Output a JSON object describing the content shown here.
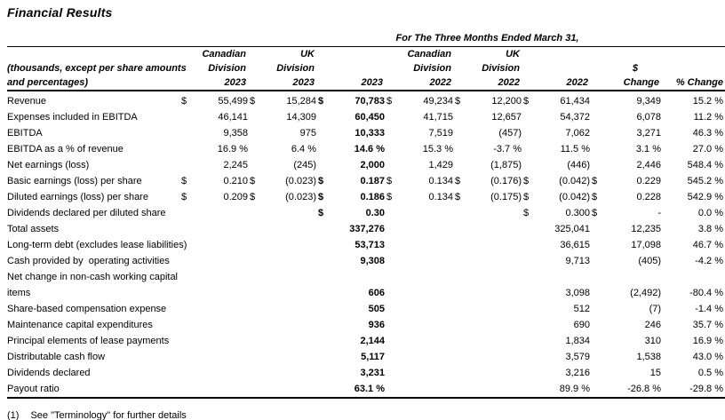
{
  "title": "Financial Results",
  "table": {
    "span_header": "For The Three Months Ended March 31,",
    "row_label_header": "(thousands, except per share amounts\nand percentages)",
    "columns": [
      {
        "lines": [
          "Canadian",
          "Division",
          "2023"
        ]
      },
      {
        "lines": [
          "UK",
          "Division",
          "2023"
        ]
      },
      {
        "lines": [
          "",
          "",
          "2023"
        ]
      },
      {
        "lines": [
          "Canadian",
          "Division",
          "2022"
        ]
      },
      {
        "lines": [
          "UK",
          "Division",
          "2022"
        ]
      },
      {
        "lines": [
          "",
          "",
          "2022"
        ]
      },
      {
        "lines": [
          "",
          "$",
          "Change"
        ]
      },
      {
        "lines": [
          "",
          "",
          "% Change"
        ]
      }
    ],
    "rows": [
      {
        "label": "Revenue",
        "cells": [
          {
            "d": "$",
            "v": "55,499"
          },
          {
            "d": "$",
            "v": "15,284"
          },
          {
            "d": "$",
            "v": "70,783"
          },
          {
            "d": "$",
            "v": "49,234"
          },
          {
            "d": "$",
            "v": "12,200"
          },
          {
            "d": "$",
            "v": "61,434"
          },
          {
            "d": "",
            "v": "9,349"
          },
          {
            "d": "",
            "v": "15.2 %"
          }
        ]
      },
      {
        "label": "Expenses included in EBITDA",
        "cells": [
          {
            "d": "",
            "v": "46,141"
          },
          {
            "d": "",
            "v": "14,309"
          },
          {
            "d": "",
            "v": "60,450"
          },
          {
            "d": "",
            "v": "41,715"
          },
          {
            "d": "",
            "v": "12,657"
          },
          {
            "d": "",
            "v": "54,372"
          },
          {
            "d": "",
            "v": "6,078"
          },
          {
            "d": "",
            "v": "11.2 %"
          }
        ]
      },
      {
        "label": "EBITDA",
        "cells": [
          {
            "d": "",
            "v": "9,358"
          },
          {
            "d": "",
            "v": "975"
          },
          {
            "d": "",
            "v": "10,333"
          },
          {
            "d": "",
            "v": "7,519"
          },
          {
            "d": "",
            "v": "(457)"
          },
          {
            "d": "",
            "v": "7,062"
          },
          {
            "d": "",
            "v": "3,271"
          },
          {
            "d": "",
            "v": "46.3 %"
          }
        ]
      },
      {
        "label": "EBITDA as a % of revenue",
        "cells": [
          {
            "d": "",
            "v": "16.9 %"
          },
          {
            "d": "",
            "v": "6.4 %"
          },
          {
            "d": "",
            "v": "14.6 %"
          },
          {
            "d": "",
            "v": "15.3 %"
          },
          {
            "d": "",
            "v": "-3.7 %"
          },
          {
            "d": "",
            "v": "11.5 %"
          },
          {
            "d": "",
            "v": "3.1 %"
          },
          {
            "d": "",
            "v": "27.0 %"
          }
        ]
      },
      {
        "label": "Net earnings (loss)",
        "cells": [
          {
            "d": "",
            "v": "2,245"
          },
          {
            "d": "",
            "v": "(245)"
          },
          {
            "d": "",
            "v": "2,000"
          },
          {
            "d": "",
            "v": "1,429"
          },
          {
            "d": "",
            "v": "(1,875)"
          },
          {
            "d": "",
            "v": "(446)"
          },
          {
            "d": "",
            "v": "2,446"
          },
          {
            "d": "",
            "v": "548.4 %"
          }
        ]
      },
      {
        "label": "Basic earnings (loss) per share",
        "cells": [
          {
            "d": "$",
            "v": "0.210"
          },
          {
            "d": "$",
            "v": "(0.023)"
          },
          {
            "d": "$",
            "v": "0.187"
          },
          {
            "d": "$",
            "v": "0.134"
          },
          {
            "d": "$",
            "v": "(0.176)"
          },
          {
            "d": "$",
            "v": "(0.042)"
          },
          {
            "d": "$",
            "v": "0.229"
          },
          {
            "d": "",
            "v": "545.2 %"
          }
        ]
      },
      {
        "label": "Diluted earnings (loss) per share",
        "cells": [
          {
            "d": "$",
            "v": "0.209"
          },
          {
            "d": "$",
            "v": "(0.023)"
          },
          {
            "d": "$",
            "v": "0.186"
          },
          {
            "d": "$",
            "v": "0.134"
          },
          {
            "d": "$",
            "v": "(0.175)"
          },
          {
            "d": "$",
            "v": "(0.042)"
          },
          {
            "d": "$",
            "v": "0.228"
          },
          {
            "d": "",
            "v": "542.9 %"
          }
        ]
      },
      {
        "label": "Dividends declared per diluted share",
        "cells": [
          {
            "d": "",
            "v": ""
          },
          {
            "d": "",
            "v": ""
          },
          {
            "d": "$",
            "v": "0.30"
          },
          {
            "d": "",
            "v": ""
          },
          {
            "d": "",
            "v": ""
          },
          {
            "d": "$",
            "v": "0.300"
          },
          {
            "d": "$",
            "v": "-"
          },
          {
            "d": "",
            "v": "0.0 %"
          }
        ]
      },
      {
        "label": "Total assets",
        "cells": [
          {
            "d": "",
            "v": ""
          },
          {
            "d": "",
            "v": ""
          },
          {
            "d": "",
            "v": "337,276"
          },
          {
            "d": "",
            "v": ""
          },
          {
            "d": "",
            "v": ""
          },
          {
            "d": "",
            "v": "325,041"
          },
          {
            "d": "",
            "v": "12,235"
          },
          {
            "d": "",
            "v": "3.8 %"
          }
        ]
      },
      {
        "label": "Long-term debt (excludes lease liabilities)",
        "cells": [
          {
            "d": "",
            "v": ""
          },
          {
            "d": "",
            "v": ""
          },
          {
            "d": "",
            "v": "53,713"
          },
          {
            "d": "",
            "v": ""
          },
          {
            "d": "",
            "v": ""
          },
          {
            "d": "",
            "v": "36,615"
          },
          {
            "d": "",
            "v": "17,098"
          },
          {
            "d": "",
            "v": "46.7 %"
          }
        ]
      },
      {
        "label": "Cash provided by  operating activities",
        "cells": [
          {
            "d": "",
            "v": ""
          },
          {
            "d": "",
            "v": ""
          },
          {
            "d": "",
            "v": "9,308"
          },
          {
            "d": "",
            "v": ""
          },
          {
            "d": "",
            "v": ""
          },
          {
            "d": "",
            "v": "9,713"
          },
          {
            "d": "",
            "v": "(405)"
          },
          {
            "d": "",
            "v": "-4.2 %"
          }
        ]
      },
      {
        "label": "Net change in non-cash working capital\nitems",
        "cells": [
          {
            "d": "",
            "v": ""
          },
          {
            "d": "",
            "v": ""
          },
          {
            "d": "",
            "v": "606"
          },
          {
            "d": "",
            "v": ""
          },
          {
            "d": "",
            "v": ""
          },
          {
            "d": "",
            "v": "3,098"
          },
          {
            "d": "",
            "v": "(2,492)"
          },
          {
            "d": "",
            "v": "-80.4 %"
          }
        ]
      },
      {
        "label": "Share-based compensation expense",
        "cells": [
          {
            "d": "",
            "v": ""
          },
          {
            "d": "",
            "v": ""
          },
          {
            "d": "",
            "v": "505"
          },
          {
            "d": "",
            "v": ""
          },
          {
            "d": "",
            "v": ""
          },
          {
            "d": "",
            "v": "512"
          },
          {
            "d": "",
            "v": "(7)"
          },
          {
            "d": "",
            "v": "-1.4 %"
          }
        ]
      },
      {
        "label": "Maintenance capital expenditures",
        "cells": [
          {
            "d": "",
            "v": ""
          },
          {
            "d": "",
            "v": ""
          },
          {
            "d": "",
            "v": "936"
          },
          {
            "d": "",
            "v": ""
          },
          {
            "d": "",
            "v": ""
          },
          {
            "d": "",
            "v": "690"
          },
          {
            "d": "",
            "v": "246"
          },
          {
            "d": "",
            "v": "35.7 %"
          }
        ]
      },
      {
        "label": "Principal elements of lease payments",
        "cells": [
          {
            "d": "",
            "v": ""
          },
          {
            "d": "",
            "v": ""
          },
          {
            "d": "",
            "v": "2,144"
          },
          {
            "d": "",
            "v": ""
          },
          {
            "d": "",
            "v": ""
          },
          {
            "d": "",
            "v": "1,834"
          },
          {
            "d": "",
            "v": "310"
          },
          {
            "d": "",
            "v": "16.9 %"
          }
        ]
      },
      {
        "label": "Distributable cash flow",
        "cells": [
          {
            "d": "",
            "v": ""
          },
          {
            "d": "",
            "v": ""
          },
          {
            "d": "",
            "v": "5,117"
          },
          {
            "d": "",
            "v": ""
          },
          {
            "d": "",
            "v": ""
          },
          {
            "d": "",
            "v": "3,579"
          },
          {
            "d": "",
            "v": "1,538"
          },
          {
            "d": "",
            "v": "43.0 %"
          }
        ]
      },
      {
        "label": "Dividends declared",
        "cells": [
          {
            "d": "",
            "v": ""
          },
          {
            "d": "",
            "v": ""
          },
          {
            "d": "",
            "v": "3,231"
          },
          {
            "d": "",
            "v": ""
          },
          {
            "d": "",
            "v": ""
          },
          {
            "d": "",
            "v": "3,216"
          },
          {
            "d": "",
            "v": "15"
          },
          {
            "d": "",
            "v": "0.5 %"
          }
        ]
      },
      {
        "label": "Payout ratio",
        "cells": [
          {
            "d": "",
            "v": ""
          },
          {
            "d": "",
            "v": ""
          },
          {
            "d": "",
            "v": "63.1 %"
          },
          {
            "d": "",
            "v": ""
          },
          {
            "d": "",
            "v": ""
          },
          {
            "d": "",
            "v": "89.9 %"
          },
          {
            "d": "",
            "v": "-26.8 %"
          },
          {
            "d": "",
            "v": "-29.8 %"
          }
        ]
      }
    ]
  },
  "footnote": {
    "marker": "(1)",
    "text": "See \"Terminology\" for further details"
  }
}
